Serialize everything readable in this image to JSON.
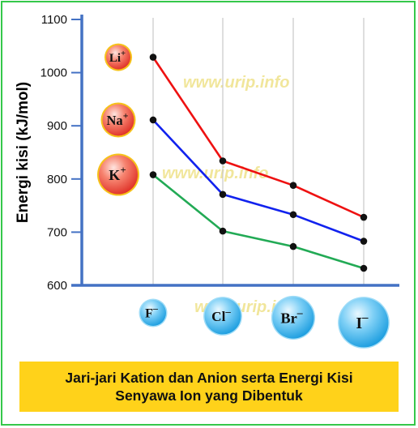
{
  "chart_data": {
    "type": "line",
    "ylabel": "Energi kisi (kJ/mol)",
    "ylim": [
      600,
      1100
    ],
    "yticks": [
      600,
      700,
      800,
      900,
      1000,
      1100
    ],
    "grid": "vertical",
    "categories": [
      "F",
      "Cl",
      "Br",
      "I"
    ],
    "series": [
      {
        "name": "Li",
        "charge": "+",
        "color": "#ee1111",
        "values": [
          1029,
          834,
          788,
          728
        ]
      },
      {
        "name": "Na",
        "charge": "+",
        "color": "#1122ee",
        "values": [
          911,
          771,
          733,
          683
        ]
      },
      {
        "name": "K",
        "charge": "+",
        "color": "#22aa55",
        "values": [
          808,
          702,
          673,
          632
        ]
      }
    ],
    "anions": [
      {
        "name": "F",
        "charge": "–"
      },
      {
        "name": "Cl",
        "charge": "–"
      },
      {
        "name": "Br",
        "charge": "–"
      },
      {
        "name": "I",
        "charge": "–"
      }
    ],
    "anion_relative_radius": [
      1,
      1.4,
      1.6,
      1.9
    ],
    "cation_relative_radius": [
      1,
      1.3,
      1.6
    ]
  },
  "caption": {
    "line1": "Jari-jari Kation dan Anion serta Energi Kisi",
    "line2": "Senyawa Ion yang Dibentuk"
  },
  "watermark": "www.urip.info",
  "colors": {
    "axis": "#4472c4",
    "grid": "#c8c8c8",
    "anion_ball": "#3fb8ef",
    "cation_ball": "#f0554a",
    "caption_bg": "#ffd21a",
    "border": "#35c84a"
  }
}
